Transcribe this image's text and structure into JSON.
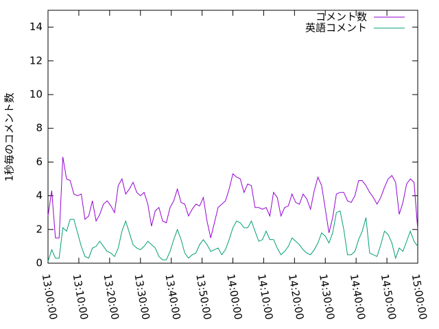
{
  "chart_data": {
    "type": "line",
    "ylabel": "1秒毎のコメント数",
    "x": [
      "13:00:00",
      "13:01:12",
      "13:02:24",
      "13:03:36",
      "13:04:48",
      "13:06:00",
      "13:07:12",
      "13:08:24",
      "13:09:36",
      "13:10:48",
      "13:12:00",
      "13:13:12",
      "13:14:24",
      "13:15:36",
      "13:16:48",
      "13:18:00",
      "13:19:12",
      "13:20:24",
      "13:21:36",
      "13:22:48",
      "13:24:00",
      "13:25:12",
      "13:26:24",
      "13:27:36",
      "13:28:48",
      "13:30:00",
      "13:31:12",
      "13:32:24",
      "13:33:36",
      "13:34:48",
      "13:36:00",
      "13:37:12",
      "13:38:24",
      "13:39:36",
      "13:40:48",
      "13:42:00",
      "13:43:12",
      "13:44:24",
      "13:45:36",
      "13:46:48",
      "13:48:00",
      "13:49:12",
      "13:50:24",
      "13:51:36",
      "13:52:48",
      "13:54:00",
      "13:55:12",
      "13:56:24",
      "13:57:36",
      "13:58:48",
      "14:00:00",
      "14:01:12",
      "14:02:24",
      "14:03:36",
      "14:04:48",
      "14:06:00",
      "14:07:12",
      "14:08:24",
      "14:09:36",
      "14:10:48",
      "14:12:00",
      "14:13:12",
      "14:14:24",
      "14:15:36",
      "14:16:48",
      "14:18:00",
      "14:19:12",
      "14:20:24",
      "14:21:36",
      "14:22:48",
      "14:24:00",
      "14:25:12",
      "14:26:24",
      "14:27:36",
      "14:28:48",
      "14:30:00",
      "14:31:12",
      "14:32:24",
      "14:33:36",
      "14:34:48",
      "14:36:00",
      "14:37:12",
      "14:38:24",
      "14:39:36",
      "14:40:48",
      "14:42:00",
      "14:43:12",
      "14:44:24",
      "14:45:36",
      "14:46:48",
      "14:48:00",
      "14:49:12",
      "14:50:24",
      "14:51:36",
      "14:52:48",
      "14:54:00",
      "14:55:12",
      "14:56:24",
      "14:57:36",
      "14:58:48",
      "15:00:00"
    ],
    "series": [
      {
        "name": "コメント数",
        "color": "#9400d3",
        "values": [
          2.8,
          4.3,
          1.5,
          1.5,
          6.3,
          5.0,
          4.9,
          4.1,
          4.0,
          4.1,
          2.6,
          2.8,
          3.7,
          2.5,
          2.9,
          3.5,
          3.7,
          3.4,
          3.0,
          4.6,
          5.0,
          4.1,
          4.4,
          4.8,
          4.2,
          4.0,
          4.2,
          3.5,
          2.2,
          3.1,
          3.3,
          2.5,
          2.4,
          3.3,
          3.7,
          4.4,
          3.6,
          3.5,
          2.8,
          3.2,
          3.5,
          3.4,
          3.9,
          2.5,
          1.5,
          2.4,
          3.3,
          3.5,
          3.7,
          4.4,
          5.3,
          5.1,
          5.0,
          4.2,
          4.7,
          4.6,
          3.3,
          3.3,
          3.2,
          3.3,
          2.8,
          4.2,
          3.9,
          2.8,
          3.3,
          3.4,
          4.1,
          3.6,
          3.5,
          4.1,
          3.8,
          3.2,
          4.3,
          5.1,
          4.6,
          3.2,
          1.8,
          2.7,
          4.1,
          4.2,
          4.2,
          3.7,
          3.6,
          4.0,
          4.9,
          4.9,
          4.6,
          4.2,
          3.9,
          3.5,
          3.9,
          4.5,
          5.0,
          5.2,
          4.8,
          2.9,
          3.6,
          4.7,
          5.0,
          4.8,
          2.0
        ]
      },
      {
        "name": "英語コメント",
        "color": "#009e73",
        "values": [
          0.1,
          0.8,
          0.3,
          0.3,
          2.1,
          1.9,
          2.6,
          2.6,
          1.8,
          1.0,
          0.4,
          0.3,
          0.9,
          1.0,
          1.3,
          1.0,
          0.7,
          0.6,
          0.4,
          0.9,
          1.9,
          2.5,
          1.8,
          1.1,
          0.9,
          0.8,
          1.0,
          1.3,
          1.1,
          0.9,
          0.4,
          0.2,
          0.2,
          0.7,
          1.4,
          2.0,
          1.4,
          0.6,
          0.3,
          0.5,
          0.6,
          1.1,
          1.4,
          1.1,
          0.7,
          0.8,
          0.9,
          0.5,
          0.8,
          1.4,
          2.1,
          2.5,
          2.4,
          2.1,
          2.1,
          2.5,
          1.9,
          1.3,
          1.4,
          1.9,
          1.4,
          1.4,
          0.9,
          0.5,
          0.7,
          1.0,
          1.5,
          1.3,
          1.1,
          0.8,
          0.6,
          0.5,
          0.8,
          1.2,
          1.8,
          1.6,
          1.2,
          1.8,
          3.0,
          3.1,
          2.0,
          0.5,
          0.5,
          0.7,
          1.4,
          1.9,
          2.7,
          0.6,
          0.5,
          0.4,
          1.1,
          1.9,
          1.7,
          1.2,
          0.3,
          0.9,
          0.7,
          1.3,
          1.9,
          1.3,
          1.0
        ]
      }
    ],
    "xlim": [
      "13:00:00",
      "15:00:00"
    ],
    "xticks": [
      "13:00:00",
      "13:10:00",
      "13:20:00",
      "13:30:00",
      "13:40:00",
      "13:50:00",
      "14:00:00",
      "14:10:00",
      "14:20:00",
      "14:30:00",
      "14:40:00",
      "14:50:00",
      "15:00:00"
    ],
    "ylim": [
      0,
      15
    ],
    "yticks": [
      0,
      2,
      4,
      6,
      8,
      10,
      12,
      14
    ],
    "legend": "top-right"
  }
}
